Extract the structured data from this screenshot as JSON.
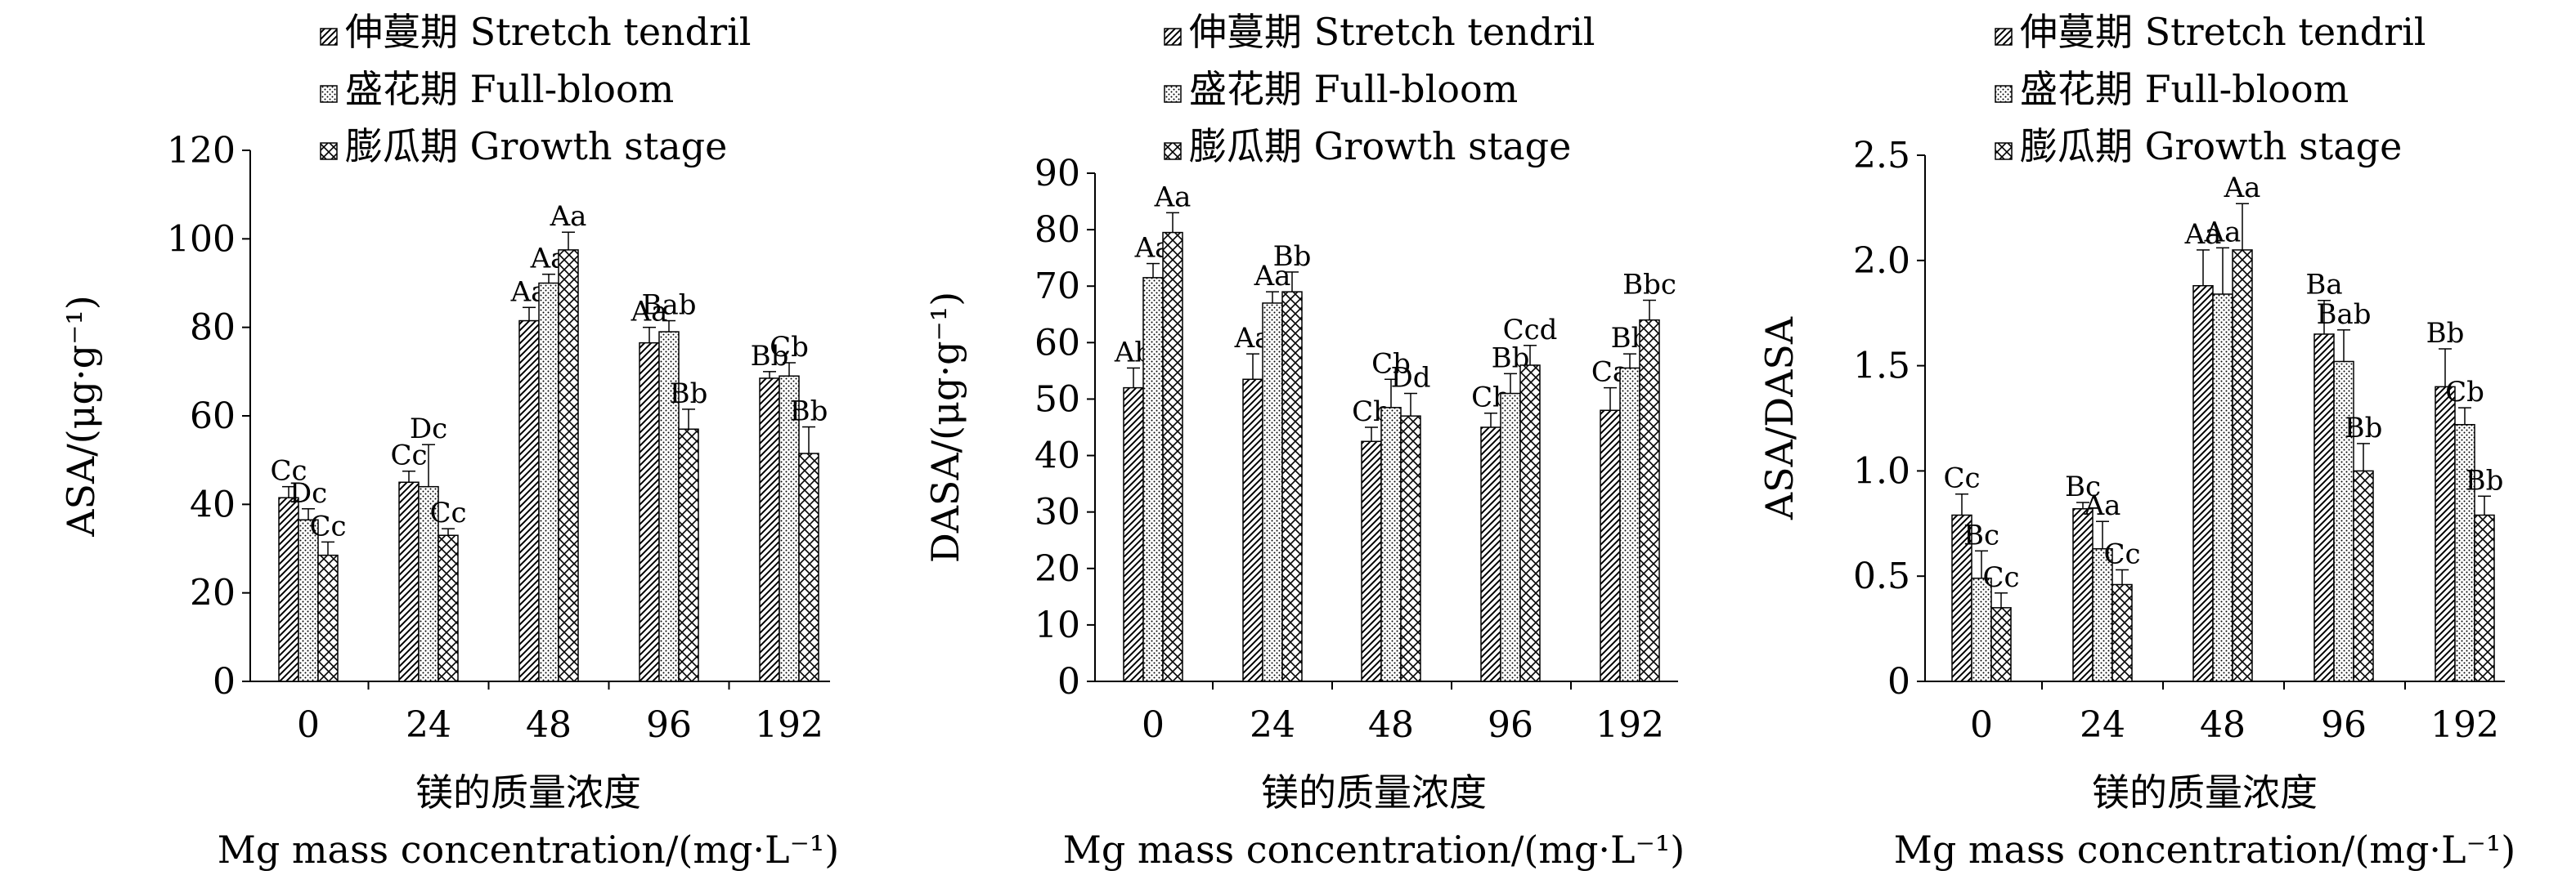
{
  "legend": [
    {
      "label": "伸蔓期 Stretch tendril",
      "pattern": "diag"
    },
    {
      "label": "盛花期 Full-bloom",
      "pattern": "dots"
    },
    {
      "label": "膨瓜期 Growth stage",
      "pattern": "cross"
    }
  ],
  "chart_data": [
    {
      "type": "bar",
      "categories": [
        "0",
        "24",
        "48",
        "96",
        "192"
      ],
      "ylabel": "ASA/(μg·g⁻¹)",
      "xlabel": [
        "镁的质量浓度",
        "Mg mass concentration/(mg·L⁻¹)"
      ],
      "ylim": [
        0,
        120
      ],
      "yticks": [
        0,
        20,
        40,
        60,
        80,
        100,
        120
      ],
      "ytick_labels": [
        "0",
        "20",
        "40",
        "60",
        "80",
        "100",
        "120"
      ],
      "grid": false,
      "legend_position": "top-center",
      "series": [
        {
          "name": "伸蔓期 Stretch tendril",
          "values": [
            41.5,
            45,
            81.5,
            76.5,
            68.5
          ],
          "errors": [
            2.5,
            2.5,
            3,
            3.5,
            1.5
          ],
          "labels": [
            "Cc",
            "Cc",
            "Aa",
            "Aa",
            "Bb"
          ]
        },
        {
          "name": "盛花期 Full-bloom",
          "values": [
            36.5,
            44,
            90,
            79,
            69
          ],
          "errors": [
            2.5,
            9.5,
            2,
            2.5,
            3
          ],
          "labels": [
            "Dc",
            "Dc",
            "Aa",
            "Bab",
            "Cb"
          ]
        },
        {
          "name": "膨瓜期 Growth stage",
          "values": [
            28.5,
            33,
            97.5,
            57,
            51.5
          ],
          "errors": [
            3,
            1.5,
            4,
            4.5,
            6
          ],
          "labels": [
            "Cc",
            "Cc",
            "Aa",
            "Bb",
            "Bb"
          ]
        }
      ]
    },
    {
      "type": "bar",
      "categories": [
        "0",
        "24",
        "48",
        "96",
        "192"
      ],
      "ylabel": "DASA/(μg·g⁻¹)",
      "xlabel": [
        "镁的质量浓度",
        "Mg mass concentration/(mg·L⁻¹)"
      ],
      "ylim": [
        0,
        90
      ],
      "yticks": [
        0,
        10,
        20,
        30,
        40,
        50,
        60,
        70,
        80,
        90
      ],
      "ytick_labels": [
        "0",
        "10",
        "20",
        "30",
        "40",
        "50",
        "60",
        "70",
        "80",
        "90"
      ],
      "grid": false,
      "legend_position": "top-center",
      "series": [
        {
          "name": "伸蔓期 Stretch tendril",
          "values": [
            52,
            53.5,
            42.5,
            45,
            48
          ],
          "errors": [
            3.5,
            4.5,
            2.5,
            2.5,
            4
          ],
          "labels": [
            "Ab",
            "Aa",
            "Cb",
            "Cb",
            "Ca"
          ]
        },
        {
          "name": "盛花期 Full-bloom",
          "values": [
            71.5,
            67,
            48.5,
            51,
            55.5
          ],
          "errors": [
            2.5,
            2,
            5,
            3.5,
            2.5
          ],
          "labels": [
            "Aa",
            "Aa",
            "Cb",
            "Bb",
            "Bb"
          ]
        },
        {
          "name": "膨瓜期 Growth stage",
          "values": [
            79.5,
            69,
            47,
            56,
            64
          ],
          "errors": [
            3.5,
            3.5,
            4,
            3.5,
            3.5
          ],
          "labels": [
            "Aa",
            "Bb",
            "Dd",
            "Ccd",
            "Bbc"
          ]
        }
      ]
    },
    {
      "type": "bar",
      "categories": [
        "0",
        "24",
        "48",
        "96",
        "192"
      ],
      "ylabel": "ASA/DASA",
      "xlabel": [
        "镁的质量浓度",
        "Mg mass concentration/(mg·L⁻¹)"
      ],
      "ylim": [
        0,
        2.5
      ],
      "yticks": [
        0,
        0.5,
        1.0,
        1.5,
        2.0,
        2.5
      ],
      "ytick_labels": [
        "0",
        "0.5",
        "1.0",
        "1.5",
        "2.0",
        "2.5"
      ],
      "grid": false,
      "legend_position": "top-center",
      "series": [
        {
          "name": "伸蔓期 Stretch tendril",
          "values": [
            0.79,
            0.82,
            1.88,
            1.65,
            1.4
          ],
          "errors": [
            0.1,
            0.03,
            0.17,
            0.16,
            0.18
          ],
          "labels": [
            "Cc",
            "Bc",
            "Aa",
            "Ba",
            "Bb"
          ]
        },
        {
          "name": "盛花期 Full-bloom",
          "values": [
            0.49,
            0.63,
            1.84,
            1.52,
            1.22
          ],
          "errors": [
            0.13,
            0.13,
            0.22,
            0.15,
            0.08
          ],
          "labels": [
            "Bc",
            "Aa",
            "Aa",
            "Bab",
            "Cb"
          ]
        },
        {
          "name": "膨瓜期 Growth stage",
          "values": [
            0.35,
            0.46,
            2.05,
            1.0,
            0.79
          ],
          "errors": [
            0.07,
            0.07,
            0.22,
            0.13,
            0.09
          ],
          "labels": [
            "Cc",
            "Cc",
            "Aa",
            "Bb",
            "Bb"
          ]
        }
      ]
    }
  ]
}
